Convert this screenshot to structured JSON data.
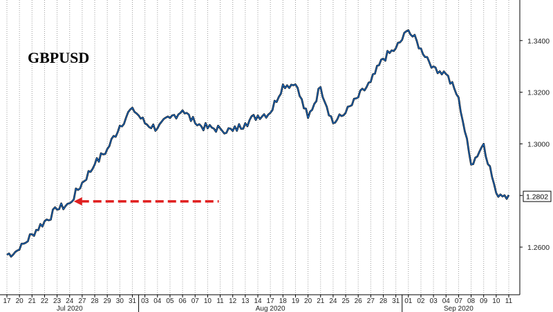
{
  "chart_data": {
    "type": "line",
    "title": "GBPUSD",
    "ylim": [
      1.25,
      1.35
    ],
    "y_ticks": [
      "1.2600",
      "1.2800",
      "1.3000",
      "1.3200",
      "1.3400"
    ],
    "x_ticks": [
      "17",
      "20",
      "21",
      "22",
      "23",
      "24",
      "27",
      "28",
      "29",
      "30",
      "31",
      "03",
      "04",
      "05",
      "06",
      "07",
      "10",
      "11",
      "12",
      "13",
      "14",
      "17",
      "18",
      "19",
      "20",
      "21",
      "24",
      "25",
      "26",
      "27",
      "28",
      "31",
      "01",
      "02",
      "03",
      "04",
      "07",
      "08",
      "09",
      "10",
      "11"
    ],
    "months": [
      {
        "label": "Jul 2020",
        "start": 0,
        "end": 10
      },
      {
        "label": "Aug 2020",
        "start": 11,
        "end": 31
      },
      {
        "label": "Sep 2020",
        "start": 32,
        "end": 40
      }
    ],
    "last_value": "1.2802",
    "reference_line": {
      "value": 1.2777,
      "from": "24",
      "to": "11",
      "color": "#e02020"
    },
    "series": [
      {
        "color": "#1f6fc8",
        "x": [
          "17",
          "20",
          "21",
          "22",
          "23",
          "24",
          "27",
          "28",
          "29",
          "30",
          "31",
          "03",
          "04",
          "05",
          "06",
          "07",
          "10",
          "11",
          "12",
          "13",
          "14",
          "17",
          "18",
          "19",
          "20",
          "21",
          "24",
          "25",
          "26",
          "27",
          "28",
          "31",
          "01",
          "02",
          "03",
          "04",
          "07",
          "08",
          "09",
          "10",
          "11"
        ],
        "values": [
          1.257,
          1.259,
          1.265,
          1.27,
          1.2745,
          1.277,
          1.285,
          1.292,
          1.298,
          1.307,
          1.314,
          1.308,
          1.306,
          1.31,
          1.313,
          1.308,
          1.306,
          1.306,
          1.305,
          1.308,
          1.311,
          1.312,
          1.323,
          1.323,
          1.31,
          1.322,
          1.308,
          1.312,
          1.318,
          1.324,
          1.333,
          1.337,
          1.344,
          1.337,
          1.33,
          1.327,
          1.318,
          1.292,
          1.3,
          1.281,
          1.2802
        ]
      }
    ],
    "grid": "vertical-dotted"
  }
}
